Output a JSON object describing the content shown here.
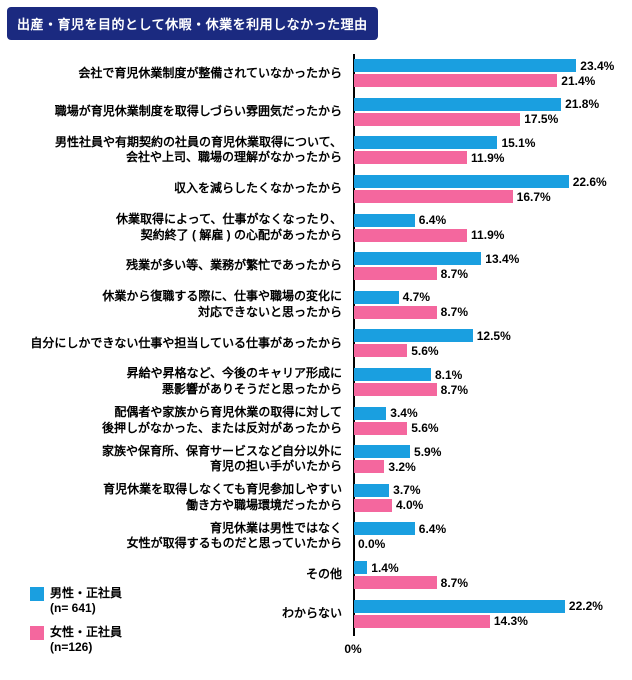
{
  "title": "出産・育児を目的として休暇・休業を利用しなかった理由",
  "axis": {
    "zero_label": "0%"
  },
  "colors": {
    "male": "#1A9FE0",
    "female": "#F4679E",
    "title_bg": "#1B2A80",
    "title_text": "#FFFFFF",
    "axis_line": "#000000"
  },
  "legend": {
    "items": [
      {
        "key": "male",
        "label": "男性・正社員",
        "n_label": "(n= 641)"
      },
      {
        "key": "female",
        "label": "女性・正社員",
        "n_label": "(n=126)"
      }
    ]
  },
  "chart_data": {
    "type": "bar",
    "orientation": "horizontal",
    "value_unit": "%",
    "xlim": [
      0,
      25
    ],
    "grid": false,
    "legend_position": "bottom-left",
    "categories": [
      "会社で育児休業制度が整備されていなかったから",
      "職場が育児休業制度を取得しづらい雰囲気だったから",
      "男性社員や有期契約の社員の育児休業取得について、\n会社や上司、職場の理解がなかったから",
      "収入を減らしたくなかったから",
      "休業取得によって、仕事がなくなったり、\n契約終了 ( 解雇 ) の心配があったから",
      "残業が多い等、業務が繁忙であったから",
      "休業から復職する際に、仕事や職場の変化に\n対応できないと思ったから",
      "自分にしかできない仕事や担当している仕事があったから",
      "昇給や昇格など、今後のキャリア形成に\n悪影響がありそうだと思ったから",
      "配偶者や家族から育児休業の取得に対して\n後押しがなかった、または反対があったから",
      "家族や保育所、保育サービスなど自分以外に\n育児の担い手がいたから",
      "育児休業を取得しなくても育児参加しやすい\n働き方や職場環境だったから",
      "育児休業は男性ではなく\n女性が取得するものだと思っていたから",
      "その他",
      "わからない"
    ],
    "series": [
      {
        "name": "男性・正社員 (n= 641)",
        "key": "male",
        "color": "#1A9FE0",
        "values": [
          23.4,
          21.8,
          15.1,
          22.6,
          6.4,
          13.4,
          4.7,
          12.5,
          8.1,
          3.4,
          5.9,
          3.7,
          6.4,
          1.4,
          22.2
        ]
      },
      {
        "name": "女性・正社員 (n=126)",
        "key": "female",
        "color": "#F4679E",
        "values": [
          21.4,
          17.5,
          11.9,
          16.7,
          11.9,
          8.7,
          8.7,
          5.6,
          8.7,
          5.6,
          3.2,
          4.0,
          0.0,
          8.7,
          14.3
        ]
      }
    ]
  }
}
